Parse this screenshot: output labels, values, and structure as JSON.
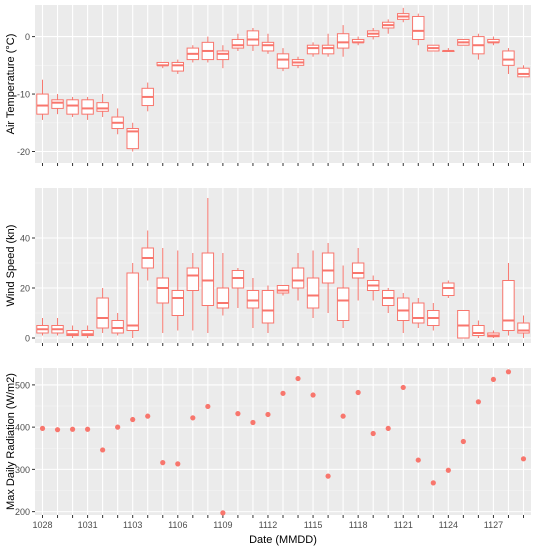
{
  "chart_data": [
    {
      "type": "box",
      "ylabel": "Air Temperature (°C)",
      "ylim": [
        -22,
        5.5
      ],
      "yticks": [
        -20,
        -10,
        0
      ],
      "grid": true,
      "series_color": "#F8766D",
      "panel_bg": "#EBEBEB",
      "boxes": [
        {
          "x": 1028,
          "min": -14.5,
          "q1": -13.5,
          "median": -12.0,
          "q3": -10.0,
          "max": -7.5
        },
        {
          "x": 1029,
          "min": -13.5,
          "q1": -12.5,
          "median": -11.5,
          "q3": -11.0,
          "max": -10.0
        },
        {
          "x": 1030,
          "min": -14.0,
          "q1": -13.5,
          "median": -12.0,
          "q3": -11.0,
          "max": -10.5
        },
        {
          "x": 1031,
          "min": -14.5,
          "q1": -13.5,
          "median": -12.5,
          "q3": -11.0,
          "max": -10.5
        },
        {
          "x": 1101,
          "min": -14.0,
          "q1": -13.0,
          "median": -12.5,
          "q3": -11.5,
          "max": -10.0
        },
        {
          "x": 1102,
          "min": -17.0,
          "q1": -16.0,
          "median": -15.0,
          "q3": -14.0,
          "max": -12.5
        },
        {
          "x": 1103,
          "min": -20.0,
          "q1": -19.5,
          "median": -16.5,
          "q3": -16.0,
          "max": -15.0
        },
        {
          "x": 1104,
          "min": -13.0,
          "q1": -12.0,
          "median": -10.5,
          "q3": -9.0,
          "max": -8.0
        },
        {
          "x": 1105,
          "min": -5.5,
          "q1": -5.0,
          "median": -5.0,
          "q3": -4.5,
          "max": -4.5
        },
        {
          "x": 1106,
          "min": -6.5,
          "q1": -6.0,
          "median": -5.0,
          "q3": -4.5,
          "max": -4.0
        },
        {
          "x": 1107,
          "min": -4.5,
          "q1": -4.0,
          "median": -3.0,
          "q3": -2.0,
          "max": -1.5
        },
        {
          "x": 1108,
          "min": -4.5,
          "q1": -4.0,
          "median": -2.5,
          "q3": -1.0,
          "max": 0.0
        },
        {
          "x": 1109,
          "min": -5.5,
          "q1": -4.0,
          "median": -3.0,
          "q3": -2.5,
          "max": -1.5
        },
        {
          "x": 1110,
          "min": -2.5,
          "q1": -2.0,
          "median": -1.5,
          "q3": -0.5,
          "max": 0.5
        },
        {
          "x": 1111,
          "min": -2.5,
          "q1": -1.5,
          "median": -0.5,
          "q3": 1.0,
          "max": 1.5
        },
        {
          "x": 1112,
          "min": -3.0,
          "q1": -2.5,
          "median": -1.5,
          "q3": -1.0,
          "max": 0.5
        },
        {
          "x": 1113,
          "min": -6.0,
          "q1": -5.5,
          "median": -4.0,
          "q3": -3.0,
          "max": -2.0
        },
        {
          "x": 1114,
          "min": -5.5,
          "q1": -5.0,
          "median": -4.5,
          "q3": -4.0,
          "max": -3.5
        },
        {
          "x": 1115,
          "min": -3.5,
          "q1": -3.0,
          "median": -2.0,
          "q3": -1.5,
          "max": -1.0
        },
        {
          "x": 1116,
          "min": -3.5,
          "q1": -3.0,
          "median": -2.0,
          "q3": -1.5,
          "max": 0.5
        },
        {
          "x": 1117,
          "min": -3.5,
          "q1": -2.0,
          "median": -1.0,
          "q3": 0.5,
          "max": 2.0
        },
        {
          "x": 1118,
          "min": -1.5,
          "q1": -1.0,
          "median": -1.0,
          "q3": -0.5,
          "max": 0.0
        },
        {
          "x": 1119,
          "min": -0.5,
          "q1": 0.0,
          "median": 0.5,
          "q3": 1.0,
          "max": 1.5
        },
        {
          "x": 1120,
          "min": 0.5,
          "q1": 1.5,
          "median": 2.0,
          "q3": 2.5,
          "max": 3.0
        },
        {
          "x": 1121,
          "min": 2.5,
          "q1": 3.0,
          "median": 3.5,
          "q3": 4.0,
          "max": 5.0
        },
        {
          "x": 1122,
          "min": -1.5,
          "q1": -0.5,
          "median": 1.0,
          "q3": 3.5,
          "max": 4.0
        },
        {
          "x": 1123,
          "min": -2.5,
          "q1": -2.5,
          "median": -2.0,
          "q3": -1.5,
          "max": -1.5
        },
        {
          "x": 1124,
          "min": -2.5,
          "q1": -2.5,
          "median": -2.5,
          "q3": -2.5,
          "max": -2.0
        },
        {
          "x": 1125,
          "min": -1.5,
          "q1": -1.5,
          "median": -1.0,
          "q3": -0.5,
          "max": -0.5
        },
        {
          "x": 1126,
          "min": -4.0,
          "q1": -3.0,
          "median": -1.5,
          "q3": 0.0,
          "max": 0.5
        },
        {
          "x": 1127,
          "min": -1.5,
          "q1": -1.0,
          "median": -1.0,
          "q3": -0.5,
          "max": 0.0
        },
        {
          "x": 1128,
          "min": -6.5,
          "q1": -5.0,
          "median": -4.0,
          "q3": -2.5,
          "max": -2.0
        },
        {
          "x": 1129,
          "min": -7.0,
          "q1": -7.0,
          "median": -6.5,
          "q3": -5.5,
          "max": -5.0
        }
      ]
    },
    {
      "type": "box",
      "ylabel": "Wind Speed (kn)",
      "ylim": [
        -2,
        60
      ],
      "yticks": [
        0,
        20,
        40
      ],
      "grid": true,
      "series_color": "#F8766D",
      "panel_bg": "#EBEBEB",
      "boxes": [
        {
          "x": 1028,
          "min": 1,
          "q1": 2,
          "median": 3.5,
          "q3": 5,
          "max": 8
        },
        {
          "x": 1029,
          "min": 1,
          "q1": 2,
          "median": 3.5,
          "q3": 5,
          "max": 8
        },
        {
          "x": 1030,
          "min": 0,
          "q1": 1,
          "median": 1.5,
          "q3": 3,
          "max": 5
        },
        {
          "x": 1031,
          "min": 0,
          "q1": 1,
          "median": 1.5,
          "q3": 3,
          "max": 5
        },
        {
          "x": 1101,
          "min": 2,
          "q1": 4,
          "median": 8,
          "q3": 16,
          "max": 20
        },
        {
          "x": 1102,
          "min": 1,
          "q1": 2,
          "median": 4,
          "q3": 7,
          "max": 10
        },
        {
          "x": 1103,
          "min": 0,
          "q1": 3,
          "median": 5,
          "q3": 26,
          "max": 30
        },
        {
          "x": 1104,
          "min": 23,
          "q1": 28,
          "median": 32,
          "q3": 36,
          "max": 43
        },
        {
          "x": 1105,
          "min": 2,
          "q1": 14,
          "median": 20,
          "q3": 24,
          "max": 36
        },
        {
          "x": 1106,
          "min": 3,
          "q1": 9,
          "median": 16,
          "q3": 19,
          "max": 35
        },
        {
          "x": 1107,
          "min": 3,
          "q1": 19,
          "median": 25,
          "q3": 28,
          "max": 34
        },
        {
          "x": 1108,
          "min": 2,
          "q1": 13,
          "median": 23,
          "q3": 34,
          "max": 56
        },
        {
          "x": 1109,
          "min": 9,
          "q1": 12,
          "median": 14,
          "q3": 20,
          "max": 34
        },
        {
          "x": 1110,
          "min": 12,
          "q1": 20,
          "median": 24,
          "q3": 27,
          "max": 28
        },
        {
          "x": 1111,
          "min": 4,
          "q1": 12,
          "median": 15,
          "q3": 19,
          "max": 24
        },
        {
          "x": 1112,
          "min": 2,
          "q1": 6,
          "median": 11,
          "q3": 19,
          "max": 21
        },
        {
          "x": 1113,
          "min": 17,
          "q1": 18,
          "median": 19,
          "q3": 21,
          "max": 21
        },
        {
          "x": 1114,
          "min": 15,
          "q1": 20,
          "median": 23,
          "q3": 28,
          "max": 34
        },
        {
          "x": 1115,
          "min": 8,
          "q1": 12,
          "median": 17,
          "q3": 24,
          "max": 35
        },
        {
          "x": 1116,
          "min": 10,
          "q1": 22,
          "median": 27,
          "q3": 34,
          "max": 38
        },
        {
          "x": 1117,
          "min": 4,
          "q1": 7,
          "median": 15,
          "q3": 20,
          "max": 29
        },
        {
          "x": 1118,
          "min": 15,
          "q1": 24,
          "median": 26,
          "q3": 30,
          "max": 36
        },
        {
          "x": 1119,
          "min": 15,
          "q1": 19,
          "median": 21,
          "q3": 23,
          "max": 25
        },
        {
          "x": 1120,
          "min": 10,
          "q1": 13,
          "median": 16,
          "q3": 19,
          "max": 20
        },
        {
          "x": 1121,
          "min": 2,
          "q1": 7,
          "median": 11,
          "q3": 16,
          "max": 18
        },
        {
          "x": 1122,
          "min": 4,
          "q1": 6,
          "median": 8,
          "q3": 14,
          "max": 16
        },
        {
          "x": 1123,
          "min": 3,
          "q1": 5,
          "median": 8,
          "q3": 11,
          "max": 14
        },
        {
          "x": 1124,
          "min": 16,
          "q1": 17,
          "median": 20,
          "q3": 22,
          "max": 23
        },
        {
          "x": 1125,
          "min": 0,
          "q1": 0,
          "median": 5,
          "q3": 11,
          "max": 11
        },
        {
          "x": 1126,
          "min": 0,
          "q1": 1,
          "median": 2,
          "q3": 5,
          "max": 7
        },
        {
          "x": 1127,
          "min": 0,
          "q1": 0.5,
          "median": 1,
          "q3": 2,
          "max": 3
        },
        {
          "x": 1128,
          "min": 1,
          "q1": 3,
          "median": 7,
          "q3": 23,
          "max": 30
        },
        {
          "x": 1129,
          "min": 0,
          "q1": 2,
          "median": 3,
          "q3": 6,
          "max": 9
        }
      ]
    },
    {
      "type": "scatter",
      "ylabel": "Max Daily Radiation (W/m2)",
      "xlabel": "Date (MMDD)",
      "ylim": [
        192,
        540
      ],
      "yticks": [
        200,
        300,
        400,
        500
      ],
      "grid": true,
      "series_color": "#F8766D",
      "panel_bg": "#EBEBEB",
      "points": [
        {
          "x": 1028,
          "y": 397
        },
        {
          "x": 1029,
          "y": 394
        },
        {
          "x": 1030,
          "y": 395
        },
        {
          "x": 1031,
          "y": 395
        },
        {
          "x": 1101,
          "y": 346
        },
        {
          "x": 1102,
          "y": 400
        },
        {
          "x": 1103,
          "y": 418
        },
        {
          "x": 1104,
          "y": 426
        },
        {
          "x": 1105,
          "y": 316
        },
        {
          "x": 1106,
          "y": 313
        },
        {
          "x": 1107,
          "y": 422
        },
        {
          "x": 1108,
          "y": 449
        },
        {
          "x": 1109,
          "y": 197
        },
        {
          "x": 1110,
          "y": 432
        },
        {
          "x": 1111,
          "y": 411
        },
        {
          "x": 1112,
          "y": 430
        },
        {
          "x": 1113,
          "y": 480
        },
        {
          "x": 1114,
          "y": 515
        },
        {
          "x": 1115,
          "y": 476
        },
        {
          "x": 1116,
          "y": 284
        },
        {
          "x": 1117,
          "y": 426
        },
        {
          "x": 1118,
          "y": 482
        },
        {
          "x": 1119,
          "y": 385
        },
        {
          "x": 1120,
          "y": 397
        },
        {
          "x": 1121,
          "y": 494
        },
        {
          "x": 1122,
          "y": 322
        },
        {
          "x": 1123,
          "y": 268
        },
        {
          "x": 1124,
          "y": 298
        },
        {
          "x": 1125,
          "y": 366
        },
        {
          "x": 1126,
          "y": 460
        },
        {
          "x": 1127,
          "y": 513
        },
        {
          "x": 1128,
          "y": 531
        },
        {
          "x": 1129,
          "y": 325
        }
      ],
      "xticks": [
        "1028",
        "1031",
        "1103",
        "1106",
        "1109",
        "1112",
        "1115",
        "1118",
        "1121",
        "1124",
        "1127"
      ]
    }
  ]
}
